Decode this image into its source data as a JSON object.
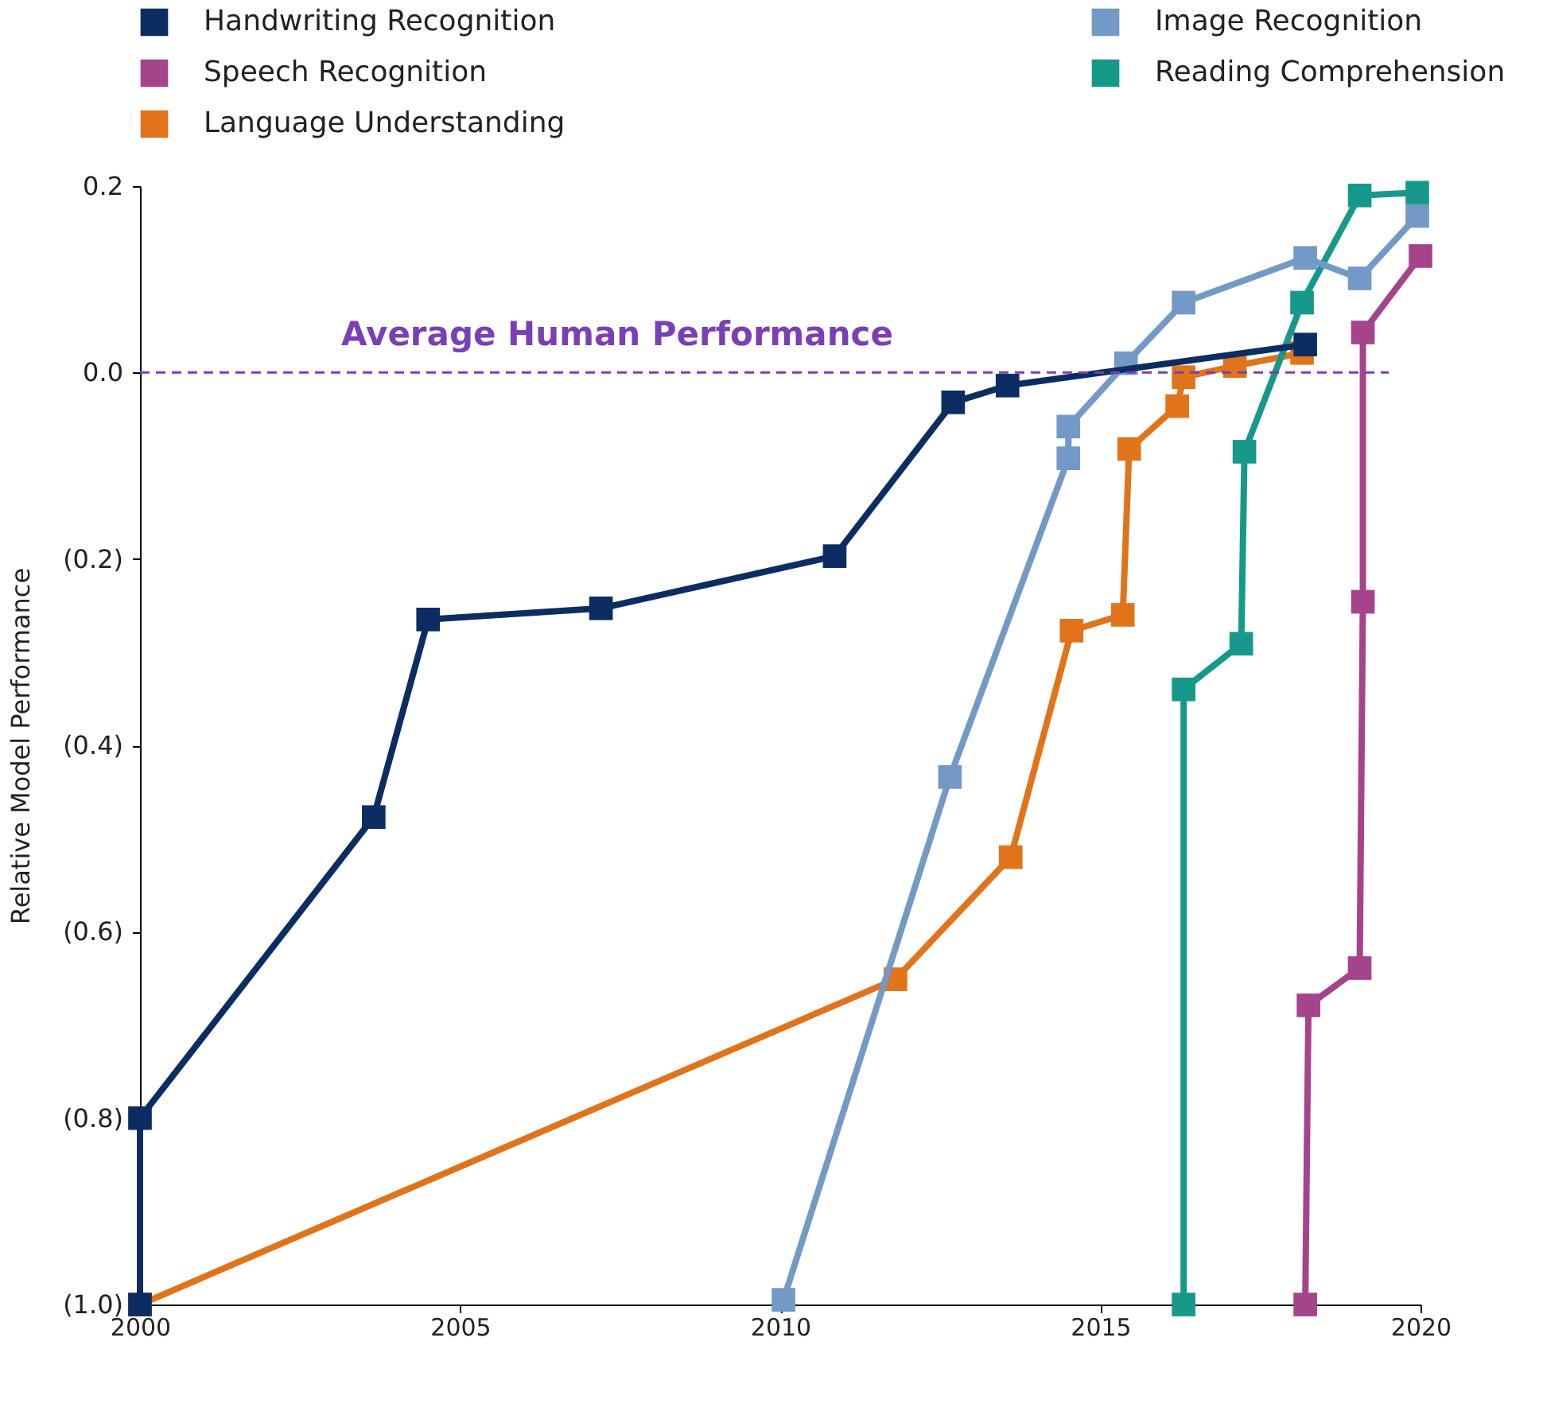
{
  "chart_data": {
    "type": "line",
    "ylabel": "Relative Model Performance",
    "xlim": [
      2000,
      2020
    ],
    "xticks": [
      2000,
      2005,
      2010,
      2015,
      2020
    ],
    "ylim": [
      -1.0,
      0.2
    ],
    "yticks": [
      0.2,
      {
        "value": 0.0,
        "label": "0.0"
      },
      {
        "value": -0.2,
        "label": "(0.2)"
      },
      {
        "value": -0.4,
        "label": "(0.4)"
      },
      {
        "value": -0.6,
        "label": "(0.6)"
      },
      {
        "value": -0.8,
        "label": "(0.8)"
      },
      {
        "value": -1.0,
        "label": "(1.0)"
      }
    ],
    "marker": "square",
    "line_style": "solid",
    "grid": false,
    "legend": "top",
    "ref_lines": [
      {
        "axis": "y",
        "value": 0.0,
        "label": "Average Human Performance",
        "color": "#7a3fb5",
        "line_style": "dashed"
      }
    ],
    "series": [
      {
        "name": "Handwriting Recognition",
        "color": "#0b2d62",
        "x": [
          2000,
          2000,
          2003.65,
          2004.5,
          2007.2,
          2010.85,
          2012.7,
          2013.55,
          2018.2
        ],
        "values": [
          -1.0,
          -0.8,
          -0.477,
          -0.265,
          -0.253,
          -0.197,
          -0.032,
          -0.014,
          0.03
        ]
      },
      {
        "name": "Image Recognition",
        "color": "#7399c6",
        "x": [
          2010.05,
          2012.65,
          2014.5,
          2014.5,
          2015.4,
          2016.3,
          2018.2,
          2019.05,
          2019.95
        ],
        "values": [
          -0.995,
          -0.434,
          -0.092,
          -0.058,
          0.01,
          0.075,
          0.123,
          0.101,
          0.168
        ]
      },
      {
        "name": "Speech Recognition",
        "color": "#a5438b",
        "x": [
          2018.2,
          2018.25,
          2019.05,
          2019.1,
          2019.1,
          2020
        ],
        "values": [
          -1.0,
          -0.679,
          -0.639,
          -0.246,
          0.043,
          0.125
        ]
      },
      {
        "name": "Reading Comprehension",
        "color": "#16998a",
        "x": [
          2016.3,
          2016.3,
          2017.2,
          2017.25,
          2018.15,
          2019.05,
          2019.95
        ],
        "values": [
          -1.0,
          -0.34,
          -0.291,
          -0.085,
          0.075,
          0.19,
          0.193
        ]
      },
      {
        "name": "Language Understanding",
        "color": "#e1741b",
        "x": [
          2000,
          2011.8,
          2013.6,
          2014.55,
          2015.35,
          2015.45,
          2016.2,
          2016.3,
          2017.1,
          2018.15
        ],
        "values": [
          -1.0,
          -0.651,
          -0.52,
          -0.277,
          -0.26,
          -0.082,
          -0.036,
          -0.005,
          0.007,
          0.021
        ]
      }
    ]
  }
}
